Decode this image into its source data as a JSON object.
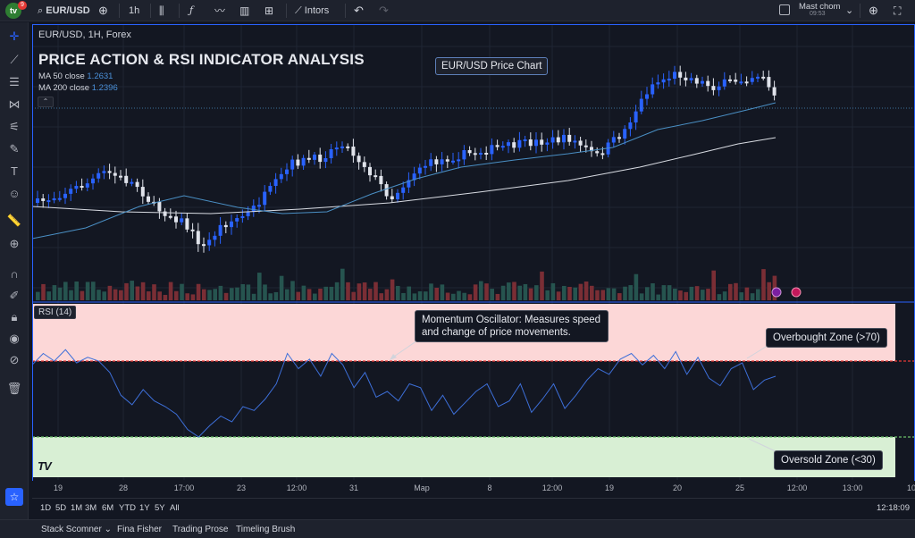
{
  "toolbar": {
    "symbol": "EUR/USD",
    "interval": "1h",
    "indicators_label": "Intors",
    "user_name": "Mast chom",
    "user_time": "09:53",
    "notification_count": "9"
  },
  "chart_header": {
    "symbol_line": "EUR/USD, 1H, Forex",
    "title": "PRICE ACTION & RSI INDICATOR ANALYSIS",
    "ma50_label": "MA 50 close",
    "ma50_value": "1.2631",
    "ma200_label": "MA 200 close",
    "ma200_value": "1.2396",
    "chart_label": "EUR/USD Price Chart"
  },
  "rsi": {
    "tag": "RSI (14)",
    "callout_oscillator": "Momentum Oscillator: Measures speed and change of price movements.",
    "callout_overbought": "Overbought Zone (>70)",
    "callout_oversold": "Oversold Zone (<30)"
  },
  "time_axis": {
    "ticks": [
      "19",
      "28",
      "17:00",
      "23",
      "12:00",
      "31",
      "Map",
      "8",
      "12:00",
      "19",
      "20",
      "25",
      "12:00",
      "13:00",
      "10"
    ]
  },
  "range_buttons": [
    "1D",
    "5D",
    "1M",
    "3M",
    "6M",
    "YTD",
    "1Y",
    "5Y",
    "All"
  ],
  "clock": "12:18:09",
  "panels": [
    "Stack Scomner",
    "Fina Fisher",
    "Trading Prose",
    "Timeling Brush"
  ],
  "colors": {
    "up": "#2962ff",
    "down": "#e0e3eb",
    "ma50": "#4a8fc4",
    "ma200": "#d8dbe2",
    "rsi_line": "#3d6fd9",
    "overbought_fill": "#fcd7d7",
    "oversold_fill": "#d8efd4",
    "accent": "#2962ff"
  },
  "chart_data": {
    "type": "line",
    "series": [
      {
        "name": "RSI (14)",
        "values": [
          68,
          74,
          70,
          76,
          69,
          72,
          70,
          64,
          52,
          47,
          55,
          49,
          46,
          42,
          34,
          30,
          36,
          41,
          38,
          46,
          44,
          50,
          58,
          74,
          66,
          71,
          62,
          74,
          68,
          56,
          64,
          51,
          54,
          49,
          58,
          56,
          44,
          52,
          42,
          48,
          54,
          58,
          46,
          49,
          58,
          43,
          50,
          58,
          45,
          52,
          60,
          66,
          63,
          71,
          74,
          68,
          73,
          66,
          75,
          63,
          72,
          61,
          57,
          66,
          69,
          55,
          60,
          62
        ]
      }
    ],
    "levels": {
      "overbought": 70,
      "oversold": 30
    }
  }
}
